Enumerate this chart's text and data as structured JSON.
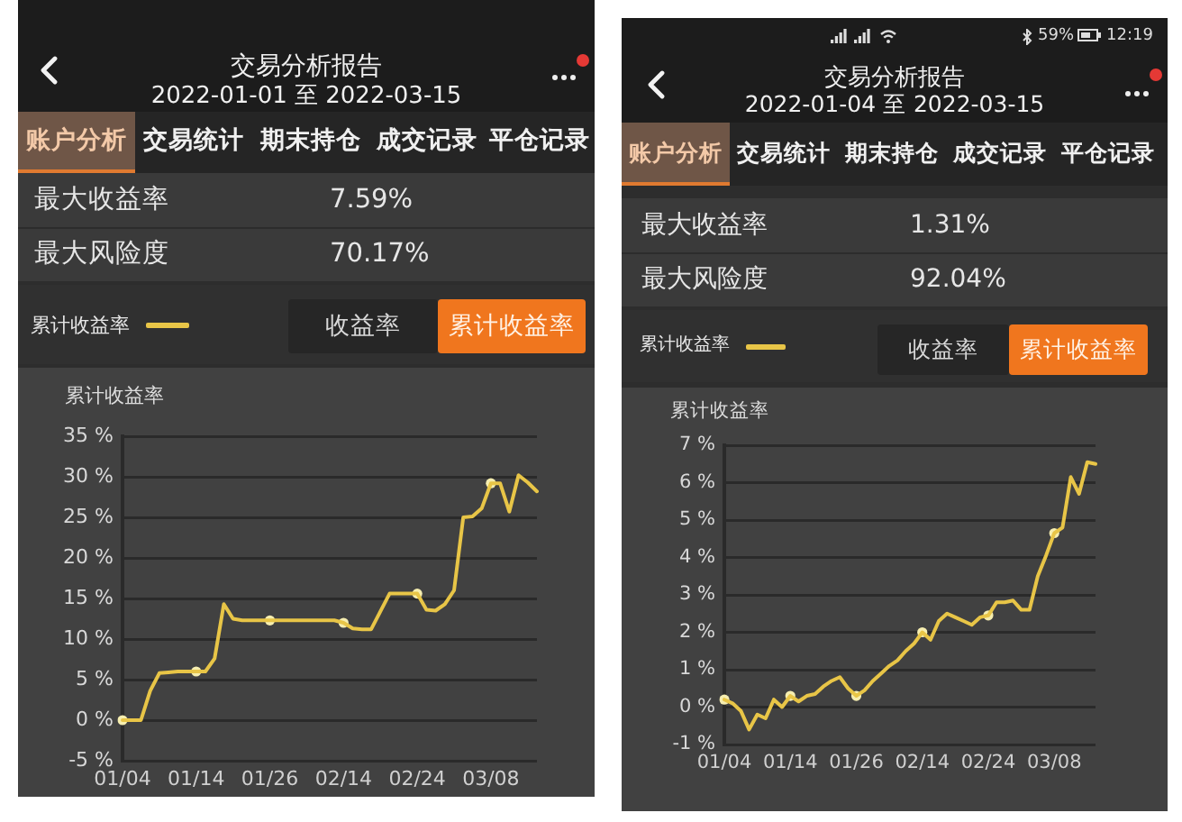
{
  "chart_data": [
    {
      "type": "line",
      "title": "交易分析报告",
      "subtitle": "2022-01-01 至 2022-03-15",
      "ylabel": "累计收益率",
      "categories": [
        "01/04",
        null,
        null,
        null,
        null,
        null,
        null,
        null,
        "01/14",
        null,
        null,
        null,
        null,
        null,
        null,
        null,
        "01/26",
        null,
        null,
        null,
        null,
        null,
        null,
        null,
        "02/14",
        null,
        null,
        null,
        null,
        null,
        null,
        null,
        "02/24",
        null,
        null,
        null,
        null,
        null,
        null,
        null,
        "03/08",
        null,
        null,
        null,
        null,
        null
      ],
      "series": [
        {
          "name": "累计收益率",
          "color": "#e8c547",
          "values": [
            0,
            0,
            0,
            3.6,
            5.8,
            5.9,
            6,
            6,
            6,
            6,
            7.6,
            14.3,
            12.5,
            12.3,
            12.3,
            12.3,
            12.3,
            12.3,
            12.3,
            12.3,
            12.3,
            12.3,
            12.3,
            12.3,
            12,
            11.3,
            11.2,
            11.2,
            13.4,
            15.6,
            15.6,
            15.6,
            15.6,
            13.6,
            13.5,
            14.3,
            16,
            25,
            25.1,
            26.1,
            29.2,
            29.2,
            25.7,
            30.2,
            29.3,
            28.2
          ]
        },
        {
          "type": "scatter",
          "color": "#f6eeb0",
          "x": [
            "01/04",
            "01/14",
            "01/26",
            "02/14",
            "02/24",
            "03/08"
          ],
          "values": [
            0,
            6,
            12.3,
            12,
            15.6,
            29.2
          ]
        }
      ],
      "ylim": [
        -5,
        35
      ],
      "yticks": [
        {
          "value": -5,
          "label": "-5 %"
        },
        {
          "value": 0,
          "label": "0 %"
        },
        {
          "value": 5,
          "label": "5 %"
        },
        {
          "value": 10,
          "label": "10 %"
        },
        {
          "value": 15,
          "label": "15 %"
        },
        {
          "value": 20,
          "label": "20 %"
        },
        {
          "value": 25,
          "label": "25 %"
        },
        {
          "value": 30,
          "label": "30 %"
        },
        {
          "value": 35,
          "label": "35 %"
        }
      ],
      "grid": "y",
      "legend": "top left",
      "annotations": [
        "账户分析",
        "交易统计",
        "期末持仓",
        "成交记录",
        "平仓记录",
        "最大收益率",
        "7.59%",
        "最大风险度",
        "70.17%",
        "收益率",
        "累计收益率"
      ]
    },
    {
      "type": "line",
      "title": "交易分析报告",
      "subtitle": "2022-01-04 至 2022-03-15",
      "ylabel": "累计收益率",
      "categories": [
        "01/04",
        null,
        null,
        null,
        null,
        null,
        null,
        null,
        "01/14",
        null,
        null,
        null,
        null,
        null,
        null,
        null,
        "01/26",
        null,
        null,
        null,
        null,
        null,
        null,
        null,
        "02/14",
        null,
        null,
        null,
        null,
        null,
        null,
        null,
        "02/24",
        null,
        null,
        null,
        null,
        null,
        null,
        null,
        "03/08",
        null,
        null,
        null,
        null,
        null
      ],
      "series": [
        {
          "name": "累计收益率",
          "color": "#e8c547",
          "values": [
            0.2,
            0.1,
            -0.1,
            -0.6,
            -0.2,
            -0.3,
            0.2,
            0,
            0.3,
            0.15,
            0.3,
            0.35,
            0.55,
            0.7,
            0.8,
            0.5,
            0.3,
            0.45,
            0.7,
            0.9,
            1.1,
            1.25,
            1.5,
            1.7,
            2,
            1.8,
            2.3,
            2.5,
            2.4,
            2.3,
            2.2,
            2.4,
            2.45,
            2.8,
            2.8,
            2.85,
            2.6,
            2.6,
            3.5,
            4.05,
            4.65,
            4.8,
            6.15,
            5.7,
            6.55,
            6.5
          ]
        },
        {
          "type": "scatter",
          "color": "#f6eeb0",
          "x": [
            "01/04",
            "01/14",
            "01/26",
            "02/14",
            "02/24",
            "03/08"
          ],
          "values": [
            0.2,
            0.3,
            0.3,
            2,
            2.45,
            4.65
          ]
        }
      ],
      "ylim": [
        -1,
        7
      ],
      "yticks": [
        {
          "value": -1,
          "label": "-1 %"
        },
        {
          "value": 0,
          "label": "0 %"
        },
        {
          "value": 1,
          "label": "1 %"
        },
        {
          "value": 2,
          "label": "2 %"
        },
        {
          "value": 3,
          "label": "3 %"
        },
        {
          "value": 4,
          "label": "4 %"
        },
        {
          "value": 5,
          "label": "5 %"
        },
        {
          "value": 6,
          "label": "6 %"
        },
        {
          "value": 7,
          "label": "7 %"
        }
      ],
      "grid": "y",
      "legend": "top left",
      "annotations": [
        "账户分析",
        "交易统计",
        "期末持仓",
        "成交记录",
        "平仓记录",
        "最大收益率",
        "1.31%",
        "最大风险度",
        "92.04%",
        "收益率",
        "累计收益率",
        "59%",
        "12:19"
      ]
    }
  ]
}
